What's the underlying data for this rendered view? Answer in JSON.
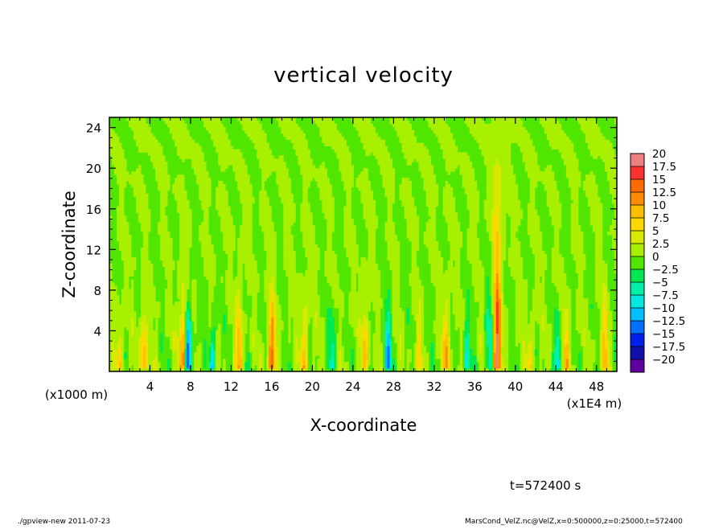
{
  "chart_data": {
    "type": "heatmap",
    "title": "vertical velocity",
    "xlabel": "X-coordinate",
    "ylabel": "Z-coordinate",
    "x_unit_label": "(x1E4 m)",
    "y_unit_label": "(x1000 m)",
    "xlim": [
      0,
      50
    ],
    "ylim": [
      0,
      25
    ],
    "x_ticks": [
      "4",
      "8",
      "12",
      "16",
      "20",
      "24",
      "28",
      "32",
      "36",
      "40",
      "44",
      "48"
    ],
    "y_ticks": [
      "4",
      "8",
      "12",
      "16",
      "20",
      "24"
    ],
    "colorbar": {
      "levels": [
        "20",
        "17.5",
        "15",
        "12.5",
        "10",
        "7.5",
        "5",
        "2.5",
        "0",
        "-2.5",
        "-5",
        "-7.5",
        "-10",
        "-12.5",
        "-15",
        "-17.5",
        "-20"
      ],
      "colors": [
        "#f08080",
        "#ff3030",
        "#ff6a00",
        "#ff8c00",
        "#ffbe00",
        "#ffd800",
        "#d8e800",
        "#a8f000",
        "#50e600",
        "#00e850",
        "#00f0a8",
        "#00e8e0",
        "#00c0ff",
        "#0070ff",
        "#0020f0",
        "#1010a8",
        "#6000a0"
      ]
    },
    "features": [
      {
        "x": 38.2,
        "top": 14,
        "peak": 19,
        "sign": 1
      },
      {
        "x": 37.4,
        "top": 9,
        "peak": -8,
        "sign": -1
      },
      {
        "x": 16.0,
        "top": 8,
        "peak": 15,
        "sign": 1
      },
      {
        "x": 7.8,
        "top": 7,
        "peak": -15,
        "sign": -1
      },
      {
        "x": 7.2,
        "top": 9,
        "peak": 12,
        "sign": 1
      },
      {
        "x": 3.4,
        "top": 7,
        "peak": 11,
        "sign": 1
      },
      {
        "x": 12.8,
        "top": 9,
        "peak": 10,
        "sign": 1
      },
      {
        "x": 19.2,
        "top": 9,
        "peak": 8,
        "sign": 1
      },
      {
        "x": 25.2,
        "top": 8,
        "peak": 9,
        "sign": 1
      },
      {
        "x": 27.4,
        "top": 7,
        "peak": -12,
        "sign": -1
      },
      {
        "x": 33.2,
        "top": 8,
        "peak": 10,
        "sign": 1
      },
      {
        "x": 35.2,
        "top": 6,
        "peak": -8,
        "sign": -1
      },
      {
        "x": 22.0,
        "top": 7,
        "peak": -7,
        "sign": -1
      },
      {
        "x": 44.2,
        "top": 6,
        "peak": -8,
        "sign": -1
      },
      {
        "x": 45.0,
        "top": 7,
        "peak": 8,
        "sign": 1
      },
      {
        "x": 48.8,
        "top": 8,
        "peak": 9,
        "sign": 1
      },
      {
        "x": 10.2,
        "top": 6,
        "peak": -9,
        "sign": -1
      },
      {
        "x": 1.0,
        "top": 6,
        "peak": 7,
        "sign": 1
      },
      {
        "x": 30.5,
        "top": 6,
        "peak": 6,
        "sign": 1
      },
      {
        "x": 41.5,
        "top": 6,
        "peak": 6,
        "sign": 1
      }
    ]
  },
  "annotations": {
    "time_label": "t=572400 s",
    "footer_left": "./gpview-new  2011-07-23",
    "footer_right": "MarsCond_VelZ.nc@VelZ,x=0:500000,z=0:25000,t=572400"
  }
}
